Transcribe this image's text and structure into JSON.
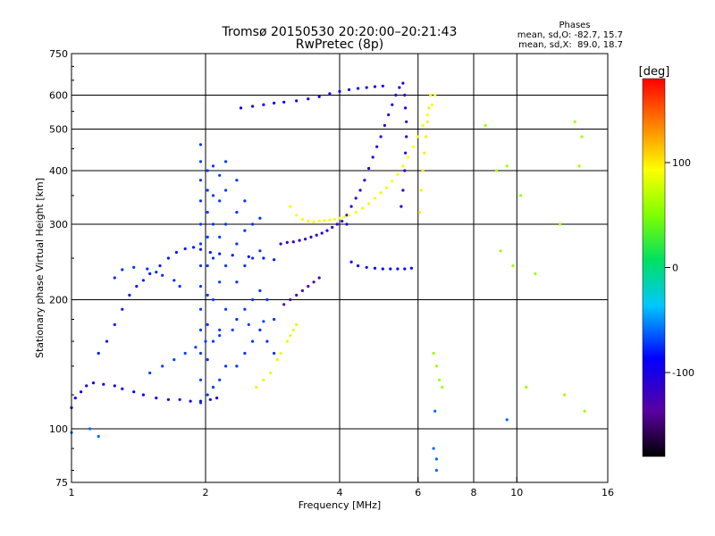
{
  "chart_data": {
    "type": "scatter",
    "title": "Tromsø 20150530 20:20:00–20:21:43",
    "subtitle": "RwPretec (8p)",
    "stats": {
      "heading": "Phases",
      "line1": "mean, sd,O: -82.7, 15.7",
      "line2": "mean, sd,X:  89.0, 18.7"
    },
    "xlabel": "Frequency [MHz]",
    "ylabel": "Stationary phase Virtual Height [km]",
    "x_scale": "log",
    "y_scale": "log",
    "xlim": [
      1,
      16
    ],
    "ylim": [
      75,
      750
    ],
    "x_ticks": [
      1,
      2,
      4,
      6,
      8,
      10,
      16
    ],
    "y_ticks": [
      75,
      100,
      200,
      300,
      400,
      500,
      600,
      750
    ],
    "grid": true,
    "colorbar": {
      "label": "[deg]",
      "range": [
        -180,
        180
      ],
      "ticks": [
        100,
        0,
        -100
      ]
    },
    "series": [
      {
        "phase": -95,
        "points": [
          [
            1.0,
            112
          ],
          [
            1.02,
            118
          ],
          [
            1.05,
            122
          ],
          [
            1.08,
            126
          ],
          [
            1.12,
            128
          ],
          [
            1.18,
            127
          ],
          [
            1.25,
            126
          ],
          [
            1.3,
            124
          ],
          [
            1.38,
            122
          ],
          [
            1.45,
            120
          ],
          [
            1.55,
            118
          ],
          [
            1.65,
            117
          ],
          [
            1.75,
            117
          ],
          [
            1.85,
            116
          ],
          [
            1.95,
            116
          ],
          [
            2.05,
            117
          ],
          [
            2.12,
            118
          ]
        ]
      },
      {
        "phase": -80,
        "points": [
          [
            1.15,
            150
          ],
          [
            1.2,
            160
          ],
          [
            1.25,
            175
          ],
          [
            1.3,
            190
          ],
          [
            1.35,
            205
          ],
          [
            1.4,
            215
          ],
          [
            1.45,
            222
          ],
          [
            1.5,
            230
          ],
          [
            1.58,
            240
          ],
          [
            1.65,
            250
          ],
          [
            1.72,
            258
          ],
          [
            1.8,
            263
          ],
          [
            1.88,
            265
          ],
          [
            1.95,
            262
          ],
          [
            2.05,
            258
          ],
          [
            2.15,
            256
          ],
          [
            2.3,
            254
          ],
          [
            2.5,
            252
          ],
          [
            2.7,
            250
          ],
          [
            2.85,
            248
          ]
        ]
      },
      {
        "phase": -75,
        "points": [
          [
            1.25,
            225
          ],
          [
            1.3,
            235
          ],
          [
            1.38,
            238
          ],
          [
            1.48,
            236
          ],
          [
            1.55,
            232
          ],
          [
            1.6,
            228
          ],
          [
            1.7,
            222
          ],
          [
            1.75,
            215
          ]
        ]
      },
      {
        "phase": -70,
        "points": [
          [
            1.5,
            135
          ],
          [
            1.6,
            140
          ],
          [
            1.7,
            145
          ],
          [
            1.8,
            150
          ],
          [
            1.9,
            155
          ],
          [
            2.0,
            160
          ],
          [
            2.15,
            165
          ],
          [
            2.3,
            170
          ],
          [
            2.5,
            175
          ],
          [
            2.7,
            178
          ]
        ]
      },
      {
        "phase": -72,
        "points": [
          [
            1.95,
            115
          ],
          [
            1.95,
            130
          ],
          [
            1.95,
            150
          ],
          [
            1.95,
            170
          ],
          [
            1.95,
            190
          ],
          [
            1.95,
            215
          ],
          [
            1.95,
            240
          ],
          [
            1.95,
            270
          ],
          [
            1.95,
            300
          ],
          [
            1.95,
            340
          ],
          [
            1.95,
            380
          ],
          [
            1.95,
            420
          ],
          [
            1.95,
            460
          ],
          [
            2.02,
            120
          ],
          [
            2.02,
            145
          ],
          [
            2.02,
            175
          ],
          [
            2.02,
            205
          ],
          [
            2.02,
            240
          ],
          [
            2.02,
            280
          ],
          [
            2.02,
            320
          ],
          [
            2.02,
            360
          ],
          [
            2.02,
            400
          ],
          [
            2.08,
            125
          ],
          [
            2.08,
            160
          ],
          [
            2.08,
            200
          ],
          [
            2.08,
            250
          ],
          [
            2.08,
            300
          ],
          [
            2.08,
            350
          ],
          [
            2.08,
            410
          ],
          [
            2.15,
            130
          ],
          [
            2.15,
            170
          ],
          [
            2.15,
            220
          ],
          [
            2.15,
            280
          ],
          [
            2.15,
            340
          ],
          [
            2.15,
            390
          ],
          [
            2.22,
            140
          ],
          [
            2.22,
            190
          ],
          [
            2.22,
            240
          ],
          [
            2.22,
            300
          ],
          [
            2.22,
            360
          ],
          [
            2.22,
            420
          ]
        ]
      },
      {
        "phase": -74,
        "points": [
          [
            2.35,
            140
          ],
          [
            2.35,
            180
          ],
          [
            2.35,
            220
          ],
          [
            2.35,
            270
          ],
          [
            2.35,
            320
          ],
          [
            2.35,
            380
          ],
          [
            2.45,
            150
          ],
          [
            2.45,
            190
          ],
          [
            2.45,
            240
          ],
          [
            2.45,
            290
          ],
          [
            2.45,
            340
          ],
          [
            2.55,
            160
          ],
          [
            2.55,
            200
          ],
          [
            2.55,
            250
          ],
          [
            2.55,
            300
          ],
          [
            2.65,
            170
          ],
          [
            2.65,
            210
          ],
          [
            2.65,
            260
          ],
          [
            2.65,
            310
          ],
          [
            2.75,
            160
          ],
          [
            2.75,
            200
          ],
          [
            2.85,
            150
          ],
          [
            2.85,
            180
          ]
        ]
      },
      {
        "phase": -110,
        "points": [
          [
            2.95,
            270
          ],
          [
            3.05,
            272
          ],
          [
            3.15,
            273
          ],
          [
            3.25,
            275
          ],
          [
            3.35,
            277
          ],
          [
            3.45,
            280
          ],
          [
            3.55,
            283
          ],
          [
            3.65,
            286
          ],
          [
            3.75,
            290
          ],
          [
            3.85,
            295
          ],
          [
            3.95,
            300
          ],
          [
            4.05,
            305
          ],
          [
            4.15,
            315
          ],
          [
            4.25,
            330
          ],
          [
            4.35,
            345
          ],
          [
            4.45,
            360
          ],
          [
            4.55,
            380
          ],
          [
            4.65,
            405
          ],
          [
            4.75,
            430
          ],
          [
            4.85,
            455
          ],
          [
            4.95,
            480
          ],
          [
            5.05,
            510
          ],
          [
            5.15,
            540
          ],
          [
            5.25,
            570
          ],
          [
            5.35,
            600
          ],
          [
            5.45,
            625
          ],
          [
            5.55,
            640
          ],
          [
            5.6,
            600
          ],
          [
            5.62,
            560
          ],
          [
            5.65,
            520
          ],
          [
            5.65,
            480
          ],
          [
            5.62,
            440
          ],
          [
            5.6,
            400
          ],
          [
            5.55,
            360
          ],
          [
            5.5,
            330
          ]
        ]
      },
      {
        "phase": -90,
        "points": [
          [
            2.4,
            560
          ],
          [
            2.55,
            565
          ],
          [
            2.7,
            570
          ],
          [
            2.85,
            575
          ],
          [
            3.0,
            578
          ],
          [
            3.2,
            582
          ],
          [
            3.4,
            588
          ],
          [
            3.6,
            595
          ],
          [
            3.8,
            605
          ],
          [
            4.0,
            612
          ],
          [
            4.2,
            618
          ],
          [
            4.4,
            622
          ],
          [
            4.6,
            625
          ],
          [
            4.8,
            628
          ],
          [
            5.0,
            630
          ]
        ]
      },
      {
        "phase": -85,
        "points": [
          [
            4.15,
            300
          ],
          [
            4.25,
            245
          ],
          [
            4.4,
            240
          ],
          [
            4.6,
            238
          ],
          [
            4.8,
            237
          ],
          [
            5.0,
            236
          ],
          [
            5.2,
            236
          ],
          [
            5.4,
            236
          ],
          [
            5.6,
            236
          ],
          [
            5.8,
            237
          ]
        ]
      },
      {
        "phase": 95,
        "points": [
          [
            3.1,
            330
          ],
          [
            3.2,
            315
          ],
          [
            3.3,
            308
          ],
          [
            3.4,
            305
          ],
          [
            3.5,
            304
          ],
          [
            3.6,
            305
          ],
          [
            3.7,
            306
          ],
          [
            3.8,
            307
          ],
          [
            3.9,
            308
          ],
          [
            4.0,
            310
          ],
          [
            4.1,
            312
          ],
          [
            4.2,
            315
          ],
          [
            4.35,
            320
          ],
          [
            4.5,
            327
          ],
          [
            4.65,
            335
          ],
          [
            4.8,
            345
          ],
          [
            4.95,
            355
          ],
          [
            5.1,
            365
          ],
          [
            5.25,
            378
          ],
          [
            5.4,
            392
          ],
          [
            5.55,
            410
          ],
          [
            5.7,
            430
          ],
          [
            5.85,
            455
          ],
          [
            6.0,
            480
          ],
          [
            6.15,
            510
          ],
          [
            6.3,
            540
          ],
          [
            6.45,
            570
          ],
          [
            6.55,
            600
          ]
        ]
      },
      {
        "phase": 85,
        "points": [
          [
            3.05,
            160
          ],
          [
            3.1,
            165
          ],
          [
            3.15,
            170
          ],
          [
            3.2,
            175
          ],
          [
            2.95,
            150
          ],
          [
            2.9,
            145
          ],
          [
            2.8,
            135
          ],
          [
            2.7,
            130
          ],
          [
            2.6,
            125
          ]
        ]
      },
      {
        "phase": -130,
        "points": [
          [
            3.0,
            195
          ],
          [
            3.1,
            200
          ],
          [
            3.2,
            205
          ],
          [
            3.3,
            210
          ],
          [
            3.4,
            215
          ],
          [
            3.5,
            220
          ],
          [
            3.6,
            225
          ]
        ]
      },
      {
        "phase": 100,
        "points": [
          [
            6.05,
            320
          ],
          [
            6.1,
            360
          ],
          [
            6.15,
            400
          ],
          [
            6.2,
            440
          ],
          [
            6.25,
            480
          ],
          [
            6.3,
            520
          ],
          [
            6.35,
            560
          ],
          [
            6.4,
            600
          ]
        ]
      },
      {
        "phase": 60,
        "points": [
          [
            6.5,
            150
          ],
          [
            6.6,
            140
          ],
          [
            6.7,
            130
          ],
          [
            6.8,
            125
          ],
          [
            8.5,
            510
          ],
          [
            9.5,
            410
          ],
          [
            10.2,
            350
          ],
          [
            12.5,
            300
          ],
          [
            13.5,
            520
          ],
          [
            14.0,
            480
          ],
          [
            13.8,
            410
          ],
          [
            9.0,
            400
          ],
          [
            9.2,
            260
          ],
          [
            9.8,
            240
          ],
          [
            11.0,
            230
          ],
          [
            12.8,
            120
          ],
          [
            10.5,
            125
          ],
          [
            14.2,
            110
          ]
        ]
      },
      {
        "phase": -60,
        "points": [
          [
            1.0,
            98
          ],
          [
            1.1,
            100
          ],
          [
            1.15,
            96
          ],
          [
            6.5,
            90
          ],
          [
            6.6,
            85
          ],
          [
            6.55,
            110
          ],
          [
            6.6,
            80
          ],
          [
            9.5,
            105
          ]
        ]
      }
    ]
  }
}
